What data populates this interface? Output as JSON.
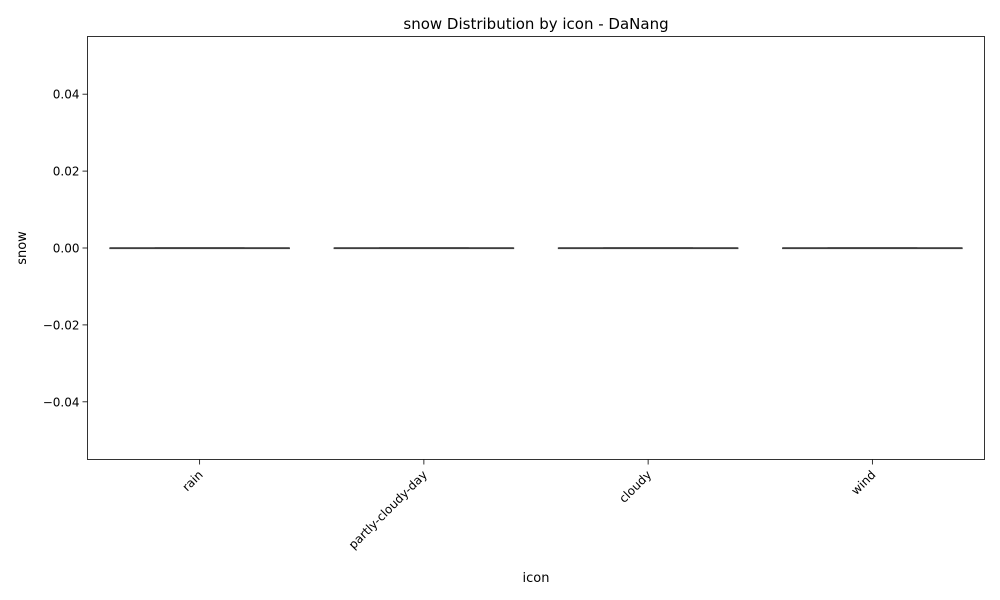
{
  "chart_data": {
    "type": "box",
    "title": "snow Distribution by icon - DaNang",
    "xlabel": "icon",
    "ylabel": "snow",
    "categories": [
      "rain",
      "partly-cloudy-day",
      "cloudy",
      "wind"
    ],
    "boxes": [
      {
        "category": "rain",
        "min": 0,
        "q1": 0,
        "median": 0,
        "q3": 0,
        "max": 0
      },
      {
        "category": "partly-cloudy-day",
        "min": 0,
        "q1": 0,
        "median": 0,
        "q3": 0,
        "max": 0
      },
      {
        "category": "cloudy",
        "min": 0,
        "q1": 0,
        "median": 0,
        "q3": 0,
        "max": 0
      },
      {
        "category": "wind",
        "min": 0,
        "q1": 0,
        "median": 0,
        "q3": 0,
        "max": 0
      }
    ],
    "ylim": [
      -0.055,
      0.055
    ],
    "yticks": [
      -0.04,
      -0.02,
      0.0,
      0.02,
      0.04
    ],
    "ytick_labels": [
      "−0.04",
      "−0.02",
      "0.00",
      "0.02",
      "0.04"
    ],
    "grid": false,
    "colors": {
      "box_line": "#3f3f3f",
      "axis": "#000000"
    }
  }
}
